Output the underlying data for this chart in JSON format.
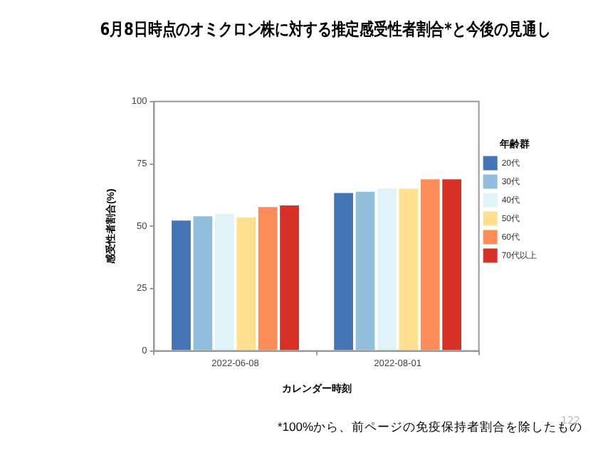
{
  "chart_data": {
    "type": "bar",
    "title": "6月8日時点のオミクロン株に対する推定感受性者割合*と今後の見通し",
    "xlabel": "カレンダー時刻",
    "ylabel": "感受性者割合(%)",
    "legend_title": "年齢群",
    "categories": [
      "2022-06-08",
      "2022-08-01"
    ],
    "series": [
      {
        "name": "20代",
        "color": "#4575b4",
        "values": [
          52.3,
          63.3
        ]
      },
      {
        "name": "30代",
        "color": "#91bfdb",
        "values": [
          54,
          63.8
        ]
      },
      {
        "name": "40代",
        "color": "#e0f3f8",
        "values": [
          55,
          65.2
        ]
      },
      {
        "name": "50代",
        "color": "#fee090",
        "values": [
          53.5,
          65
        ]
      },
      {
        "name": "60代",
        "color": "#fc8d59",
        "values": [
          57.7,
          68.8
        ]
      },
      {
        "name": "70代以上",
        "color": "#d73027",
        "values": [
          58.3,
          68.8
        ]
      }
    ],
    "ylim": [
      0,
      100
    ],
    "yticks": [
      0,
      25,
      50,
      75,
      100
    ],
    "grid": false,
    "legend": "right",
    "annotations": [
      "*100%から、前ページの免疫保持者割合を除したもの",
      "122"
    ]
  }
}
